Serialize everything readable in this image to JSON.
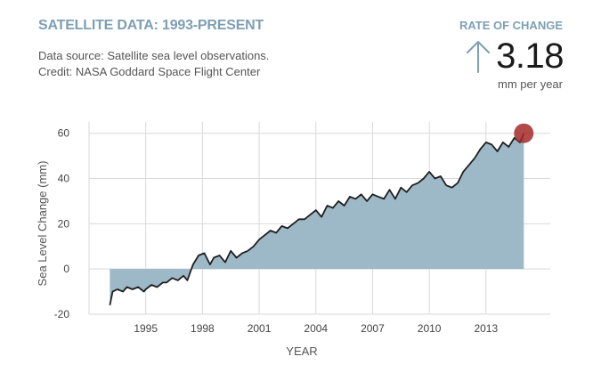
{
  "header": {
    "title": "SATELLITE DATA: 1993-PRESENT",
    "source_line1": "Data source: Satellite sea level observations.",
    "source_line2": "Credit: NASA Goddard Space Flight Center"
  },
  "rate": {
    "label": "RATE OF CHANGE",
    "value": "3.18",
    "unit": "mm per year"
  },
  "colors": {
    "title": "#7c9fb4",
    "area_fill": "#9db8c6",
    "line": "#1f1f1f",
    "marker": "#a52a2a",
    "grid": "#d9d9d9",
    "arrow": "#7c9fb4"
  },
  "chart_data": {
    "type": "area",
    "title": "",
    "xlabel": "YEAR",
    "ylabel": "Sea Level Change (mm)",
    "xlim": [
      1992,
      2016.4
    ],
    "ylim": [
      -20,
      65
    ],
    "x_ticks": [
      1995,
      1998,
      2001,
      2004,
      2007,
      2010,
      2013
    ],
    "x_tick_labels": [
      "1995",
      "1998",
      "2001",
      "2004",
      "2007",
      "2010",
      "2013"
    ],
    "y_ticks": [
      -20,
      0,
      20,
      40,
      60
    ],
    "y_tick_labels": [
      "-20",
      "0",
      "20",
      "40",
      "60"
    ],
    "grid": true,
    "series": [
      {
        "name": "Sea Level Change",
        "x": [
          1993.1,
          1993.25,
          1993.5,
          1993.8,
          1994.0,
          1994.3,
          1994.6,
          1994.9,
          1995.0,
          1995.3,
          1995.6,
          1995.9,
          1996.1,
          1996.4,
          1996.7,
          1997.0,
          1997.2,
          1997.5,
          1997.8,
          1998.1,
          1998.4,
          1998.6,
          1998.9,
          1999.2,
          1999.5,
          1999.8,
          2000.1,
          2000.4,
          2000.7,
          2001.0,
          2001.3,
          2001.6,
          2001.9,
          2002.2,
          2002.5,
          2002.8,
          2003.1,
          2003.4,
          2003.7,
          2004.0,
          2004.3,
          2004.6,
          2004.9,
          2005.2,
          2005.5,
          2005.8,
          2006.1,
          2006.4,
          2006.7,
          2007.0,
          2007.3,
          2007.6,
          2007.9,
          2008.2,
          2008.5,
          2008.8,
          2009.1,
          2009.4,
          2009.7,
          2010.0,
          2010.3,
          2010.6,
          2010.9,
          2011.2,
          2011.5,
          2011.8,
          2012.1,
          2012.4,
          2012.7,
          2013.0,
          2013.3,
          2013.6,
          2013.9,
          2014.2,
          2014.5,
          2014.8,
          2015.0
        ],
        "values": [
          -16,
          -10,
          -9,
          -10,
          -8,
          -9,
          -8,
          -10,
          -9,
          -7,
          -8,
          -6,
          -6,
          -4,
          -5,
          -3,
          -5,
          2,
          6,
          7,
          2,
          5,
          6,
          3,
          8,
          5,
          7,
          8,
          10,
          13,
          15,
          17,
          16,
          19,
          18,
          20,
          22,
          22,
          24,
          26,
          23,
          28,
          27,
          30,
          28,
          32,
          31,
          33,
          30,
          33,
          32,
          31,
          35,
          31,
          36,
          34,
          37,
          38,
          40,
          43,
          40,
          41,
          37,
          36,
          38,
          43,
          46,
          49,
          53,
          56,
          55,
          52,
          56,
          54,
          58,
          56,
          60
        ]
      }
    ],
    "marker": {
      "x": 2015.0,
      "y": 60
    }
  }
}
